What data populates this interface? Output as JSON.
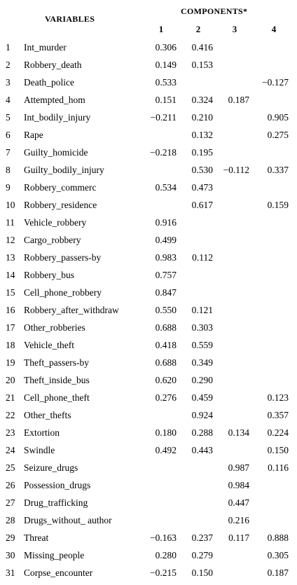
{
  "header": {
    "variables": "VARIABLES",
    "components": "COMPONENTS*",
    "component_numbers": [
      "1",
      "2",
      "3",
      "4"
    ]
  },
  "rows": [
    {
      "n": "1",
      "variable": "Int_murder",
      "c1": "0.306",
      "c2": "0.416",
      "c3": "",
      "c4": ""
    },
    {
      "n": "2",
      "variable": "Robbery_death",
      "c1": "0.149",
      "c2": "0.153",
      "c3": "",
      "c4": ""
    },
    {
      "n": "3",
      "variable": "Death_police",
      "c1": "0.533",
      "c2": "",
      "c3": "",
      "c4": "−0.127"
    },
    {
      "n": "4",
      "variable": "Attempted_hom",
      "c1": "0.151",
      "c2": "0.324",
      "c3": "0.187",
      "c4": ""
    },
    {
      "n": "5",
      "variable": "Int_bodily_injury",
      "c1": "−0.211",
      "c2": "0.210",
      "c3": "",
      "c4": "0.905"
    },
    {
      "n": "6",
      "variable": "Rape",
      "c1": "",
      "c2": "0.132",
      "c3": "",
      "c4": "0.275"
    },
    {
      "n": "7",
      "variable": "Guilty_homicide",
      "c1": "−0.218",
      "c2": "0.195",
      "c3": "",
      "c4": ""
    },
    {
      "n": "8",
      "variable": "Guilty_bodily_injury",
      "c1": "",
      "c2": "0.530",
      "c3": "−0.112",
      "c4": "0.337"
    },
    {
      "n": "9",
      "variable": "Robbery_commerc",
      "c1": "0.534",
      "c2": "0.473",
      "c3": "",
      "c4": ""
    },
    {
      "n": "10",
      "variable": "Robbery_residence",
      "c1": "",
      "c2": "0.617",
      "c3": "",
      "c4": "0.159"
    },
    {
      "n": "11",
      "variable": "Vehicle_robbery",
      "c1": "0.916",
      "c2": "",
      "c3": "",
      "c4": ""
    },
    {
      "n": "12",
      "variable": "Cargo_robbery",
      "c1": "0.499",
      "c2": "",
      "c3": "",
      "c4": ""
    },
    {
      "n": "13",
      "variable": "Robbery_passers-by",
      "c1": "0.983",
      "c2": "0.112",
      "c3": "",
      "c4": ""
    },
    {
      "n": "14",
      "variable": "Robbery_bus",
      "c1": "0.757",
      "c2": "",
      "c3": "",
      "c4": ""
    },
    {
      "n": "15",
      "variable": "Cell_phone_robbery",
      "c1": "0.847",
      "c2": "",
      "c3": "",
      "c4": ""
    },
    {
      "n": "16",
      "variable": "Robbery_after_withdraw",
      "c1": "0.550",
      "c2": "0.121",
      "c3": "",
      "c4": ""
    },
    {
      "n": "17",
      "variable": "Other_robberies",
      "c1": "0.688",
      "c2": "0.303",
      "c3": "",
      "c4": ""
    },
    {
      "n": "18",
      "variable": "Vehicle_theft",
      "c1": "0.418",
      "c2": "0.559",
      "c3": "",
      "c4": ""
    },
    {
      "n": "19",
      "variable": "Theft_passers-by",
      "c1": "0.688",
      "c2": "0.349",
      "c3": "",
      "c4": ""
    },
    {
      "n": "20",
      "variable": "Theft_inside_bus",
      "c1": "0.620",
      "c2": "0.290",
      "c3": "",
      "c4": ""
    },
    {
      "n": "21",
      "variable": "Cell_phone_theft",
      "c1": "0.276",
      "c2": "0.459",
      "c3": "",
      "c4": "0.123"
    },
    {
      "n": "22",
      "variable": "Other_thefts",
      "c1": "",
      "c2": "0.924",
      "c3": "",
      "c4": "0.357"
    },
    {
      "n": "23",
      "variable": "Extortion",
      "c1": "0.180",
      "c2": "0.288",
      "c3": "0.134",
      "c4": "0.224"
    },
    {
      "n": "24",
      "variable": "Swindle",
      "c1": "0.492",
      "c2": "0.443",
      "c3": "",
      "c4": "0.150"
    },
    {
      "n": "25",
      "variable": "Seizure_drugs",
      "c1": "",
      "c2": "",
      "c3": "0.987",
      "c4": "0.116"
    },
    {
      "n": "26",
      "variable": "Possession_drugs",
      "c1": "",
      "c2": "",
      "c3": "0.984",
      "c4": ""
    },
    {
      "n": "27",
      "variable": "Drug_trafficking",
      "c1": "",
      "c2": "",
      "c3": "0.447",
      "c4": ""
    },
    {
      "n": "28",
      "variable": "Drugs_without_ author",
      "c1": "",
      "c2": "",
      "c3": "0.216",
      "c4": ""
    },
    {
      "n": "29",
      "variable": "Threat",
      "c1": "−0.163",
      "c2": "0.237",
      "c3": "0.117",
      "c4": "0.888"
    },
    {
      "n": "30",
      "variable": "Missing_people",
      "c1": "0.280",
      "c2": "0.279",
      "c3": "",
      "c4": "0.305"
    },
    {
      "n": "31",
      "variable": "Corpse_encounter",
      "c1": "−0.215",
      "c2": "0.150",
      "c3": "",
      "c4": "0.187"
    }
  ]
}
